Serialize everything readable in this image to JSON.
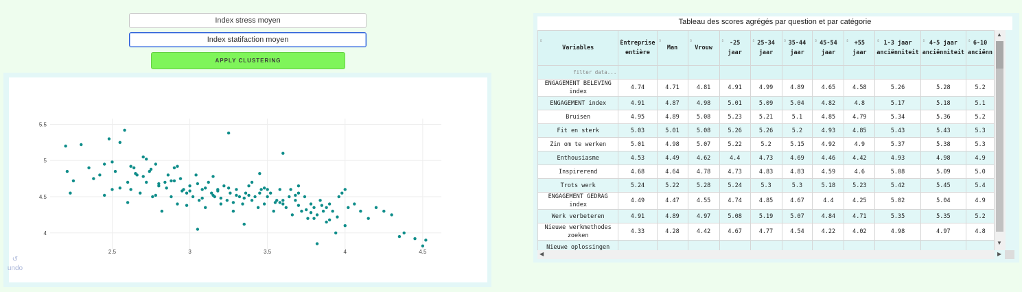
{
  "controls": {
    "dropdown_stress": "Index stress moyen",
    "dropdown_satisfaction": "Index statifaction moyen",
    "apply_label": "APPLY CLUSTERING",
    "undo_label": "undo",
    "undo_glyph": "↺"
  },
  "colors": {
    "background": "#eefdee",
    "apply_button": "#7ff55a",
    "point": "#0f8d8a",
    "header_bg": "#daf5f5"
  },
  "chart_data": {
    "type": "scatter",
    "title": "",
    "xlabel": "",
    "ylabel": "",
    "xlim": [
      2.1,
      4.62
    ],
    "ylim": [
      3.78,
      5.58
    ],
    "xticks": [
      "2.5",
      "3",
      "3.5",
      "4",
      "4.5"
    ],
    "yticks": [
      "5.5",
      "5",
      "4.5",
      "4"
    ],
    "grid": true,
    "x": [
      2.2,
      2.23,
      2.25,
      2.21,
      2.3,
      2.35,
      2.38,
      2.42,
      2.45,
      2.48,
      2.5,
      2.52,
      2.55,
      2.58,
      2.6,
      2.62,
      2.64,
      2.66,
      2.68,
      2.7,
      2.72,
      2.74,
      2.76,
      2.78,
      2.8,
      2.82,
      2.84,
      2.86,
      2.88,
      2.9,
      2.92,
      2.94,
      2.96,
      2.98,
      3.0,
      3.02,
      3.04,
      3.06,
      3.08,
      3.1,
      3.12,
      3.14,
      3.16,
      3.18,
      3.2,
      3.22,
      3.24,
      3.26,
      3.28,
      3.3,
      3.32,
      3.34,
      3.36,
      3.38,
      3.4,
      3.42,
      3.44,
      3.46,
      3.48,
      3.5,
      3.52,
      3.54,
      3.56,
      3.58,
      3.6,
      3.62,
      3.64,
      3.66,
      3.68,
      3.7,
      3.72,
      3.74,
      3.76,
      3.78,
      3.8,
      3.82,
      3.84,
      3.86,
      3.88,
      3.9,
      3.92,
      3.94,
      3.96,
      3.98,
      4.0,
      4.02,
      4.06,
      4.1,
      4.15,
      4.2,
      4.25,
      4.3,
      4.35,
      4.38,
      4.45,
      4.5,
      4.52,
      2.45,
      2.55,
      2.62,
      2.7,
      2.8,
      2.9,
      3.0,
      3.1,
      3.2,
      3.3,
      3.4,
      3.5,
      3.6,
      3.7,
      3.8,
      3.9,
      4.0,
      2.5,
      2.6,
      2.75,
      2.85,
      2.95,
      3.05,
      3.15,
      3.25,
      3.35,
      3.45,
      3.55,
      3.65,
      3.75,
      3.85,
      3.95,
      2.65,
      2.78,
      2.88,
      2.98,
      3.08,
      3.18,
      3.28,
      3.38,
      3.48,
      3.58,
      3.68,
      3.78,
      3.88,
      3.25,
      3.45,
      2.72,
      3.6,
      3.15,
      2.92,
      3.82,
      3.05,
      3.35,
      3.7
    ],
    "y": [
      5.2,
      4.55,
      4.72,
      4.85,
      5.22,
      4.9,
      4.75,
      4.8,
      4.95,
      5.3,
      4.6,
      4.85,
      5.25,
      5.42,
      4.7,
      4.6,
      4.9,
      4.8,
      4.55,
      5.05,
      4.7,
      4.85,
      4.5,
      4.95,
      4.65,
      4.3,
      4.7,
      4.8,
      4.5,
      4.9,
      4.4,
      4.75,
      4.6,
      4.55,
      4.65,
      4.5,
      4.8,
      4.45,
      4.6,
      4.35,
      4.7,
      4.55,
      4.5,
      4.6,
      4.4,
      4.65,
      4.45,
      4.55,
      4.3,
      4.6,
      4.5,
      4.4,
      4.55,
      4.65,
      4.45,
      4.5,
      4.35,
      4.6,
      4.4,
      4.5,
      4.55,
      4.3,
      4.45,
      4.6,
      4.4,
      4.35,
      4.5,
      4.25,
      4.45,
      4.55,
      4.3,
      4.5,
      4.2,
      4.4,
      4.35,
      4.25,
      4.45,
      4.3,
      4.15,
      4.4,
      4.3,
      4.0,
      4.5,
      4.55,
      4.6,
      4.35,
      4.4,
      4.3,
      4.2,
      4.35,
      4.3,
      4.25,
      3.95,
      4.0,
      3.92,
      3.82,
      3.9,
      4.52,
      4.62,
      4.92,
      4.78,
      4.68,
      4.72,
      4.58,
      4.62,
      4.48,
      4.52,
      4.7,
      4.6,
      4.45,
      4.38,
      4.2,
      4.18,
      4.1,
      4.98,
      4.42,
      4.88,
      4.62,
      4.58,
      4.68,
      4.52,
      4.62,
      4.48,
      4.55,
      4.42,
      4.6,
      4.32,
      4.38,
      4.22,
      4.82,
      4.52,
      4.72,
      4.38,
      4.48,
      4.58,
      4.42,
      4.52,
      4.62,
      4.42,
      4.52,
      4.28,
      4.35,
      5.38,
      4.82,
      5.02,
      5.1,
      4.78,
      4.92,
      3.85,
      4.05,
      4.12,
      4.65
    ]
  },
  "table": {
    "title": "Tableau des scores agrégés par question et par catégorie",
    "filter_placeholder": "filter data...",
    "columns": [
      "Variables",
      "Entreprise entière",
      "Man",
      "Vrouw",
      "-25 jaar",
      "25-34 jaar",
      "35-44 jaar",
      "45-54 jaar",
      "+55 jaar",
      "1-3 jaar anciënniteit",
      "4-5 jaar anciënniteit",
      "6-10 anciënn"
    ],
    "rows": [
      [
        "ENGAGEMENT BELEVING index",
        "4.74",
        "4.71",
        "4.81",
        "4.91",
        "4.99",
        "4.89",
        "4.65",
        "4.58",
        "5.26",
        "5.28",
        "5.2"
      ],
      [
        "ENGAGEMENT index",
        "4.91",
        "4.87",
        "4.98",
        "5.01",
        "5.09",
        "5.04",
        "4.82",
        "4.8",
        "5.17",
        "5.18",
        "5.1"
      ],
      [
        "Bruisen",
        "4.95",
        "4.89",
        "5.08",
        "5.23",
        "5.21",
        "5.1",
        "4.85",
        "4.79",
        "5.34",
        "5.36",
        "5.2"
      ],
      [
        "Fit en sterk",
        "5.03",
        "5.01",
        "5.08",
        "5.26",
        "5.26",
        "5.2",
        "4.93",
        "4.85",
        "5.43",
        "5.43",
        "5.3"
      ],
      [
        "Zin om te werken",
        "5.01",
        "4.98",
        "5.07",
        "5.22",
        "5.2",
        "5.15",
        "4.92",
        "4.9",
        "5.37",
        "5.38",
        "5.3"
      ],
      [
        "Enthousiasme",
        "4.53",
        "4.49",
        "4.62",
        "4.4",
        "4.73",
        "4.69",
        "4.46",
        "4.42",
        "4.93",
        "4.98",
        "4.9"
      ],
      [
        "Inspirerend",
        "4.68",
        "4.64",
        "4.78",
        "4.73",
        "4.83",
        "4.83",
        "4.59",
        "4.6",
        "5.08",
        "5.09",
        "5.0"
      ],
      [
        "Trots werk",
        "5.24",
        "5.22",
        "5.28",
        "5.24",
        "5.3",
        "5.3",
        "5.18",
        "5.23",
        "5.42",
        "5.45",
        "5.4"
      ],
      [
        "ENGAGEMENT GEDRAG index",
        "4.49",
        "4.47",
        "4.55",
        "4.74",
        "4.85",
        "4.67",
        "4.4",
        "4.25",
        "5.02",
        "5.04",
        "4.9"
      ],
      [
        "Werk verbeteren",
        "4.91",
        "4.89",
        "4.97",
        "5.08",
        "5.19",
        "5.07",
        "4.84",
        "4.71",
        "5.35",
        "5.35",
        "5.2"
      ],
      [
        "Nieuwe werkmethodes zoeken",
        "4.33",
        "4.28",
        "4.42",
        "4.67",
        "4.77",
        "4.54",
        "4.22",
        "4.02",
        "4.98",
        "4.97",
        "4.8"
      ],
      [
        "Nieuwe oplossingen",
        "",
        "",
        "",
        "",
        "",
        "",
        "",
        "",
        "",
        "",
        ""
      ]
    ]
  }
}
